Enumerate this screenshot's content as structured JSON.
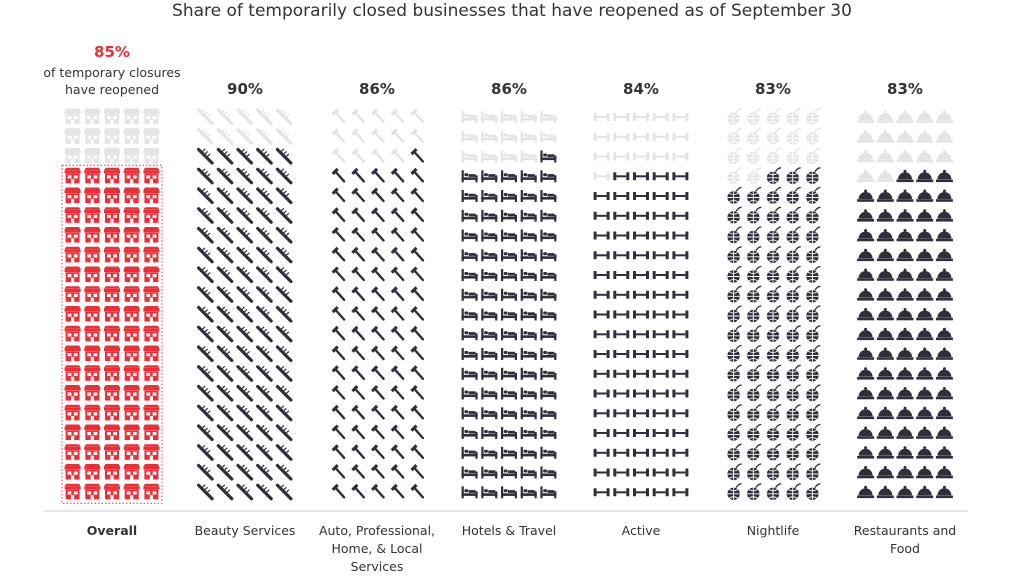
{
  "title": "Share of temporarily closed businesses that have reopened as of September 30",
  "overall_note": "of temporary closures have reopened",
  "colors": {
    "highlight": "#ee2e35",
    "filled": "#2f2f3c",
    "empty": "#e4e4e4",
    "text": "#333333",
    "axis": "#cccccc"
  },
  "chart_data": {
    "type": "bar",
    "subtype": "unit-pictogram",
    "units_per_column": 100,
    "categories": [
      "Overall",
      "Beauty Services",
      "Auto, Professional, Home, & Local Services",
      "Hotels & Travel",
      "Active",
      "Nightlife",
      "Restaurants and Food"
    ],
    "category_lines": [
      [
        "Overall"
      ],
      [
        "Beauty Services"
      ],
      [
        "Auto, Professional,",
        "Home, & Local",
        "Services"
      ],
      [
        "Hotels & Travel"
      ],
      [
        "Active"
      ],
      [
        "Nightlife"
      ],
      [
        "Restaurants and",
        "Food"
      ]
    ],
    "values": [
      85,
      90,
      86,
      86,
      84,
      83,
      83
    ],
    "value_labels": [
      "85%",
      "90%",
      "86%",
      "86%",
      "84%",
      "83%",
      "83%"
    ],
    "icons": [
      "storefront-icon",
      "comb-icon",
      "hammer-icon",
      "bed-icon",
      "dumbbell-icon",
      "disco-ball-icon",
      "cloche-icon"
    ],
    "highlighted_category": "Overall"
  }
}
